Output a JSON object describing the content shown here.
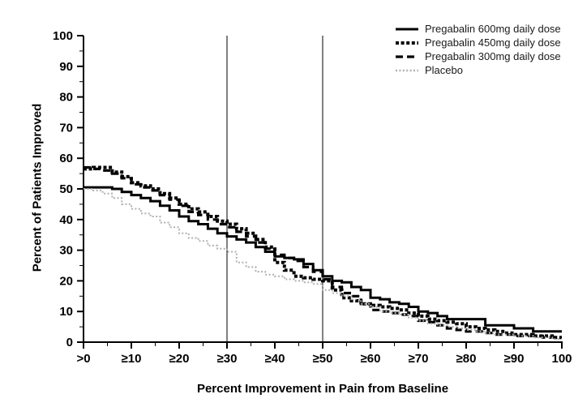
{
  "chart_data": {
    "type": "line",
    "subtype": "step-responder-curves",
    "title": "",
    "xlabel": "Percent Improvement in Pain from Baseline",
    "ylabel": "Percent of Patients Improved",
    "xlim": [
      0,
      100
    ],
    "ylim": [
      0,
      100
    ],
    "x_tick_values": [
      0,
      10,
      20,
      30,
      40,
      50,
      60,
      70,
      80,
      90,
      100
    ],
    "x_tick_labels": [
      ">0",
      "≥10",
      "≥20",
      "≥30",
      "≥40",
      "≥50",
      "≥60",
      "≥70",
      "≥80",
      "≥90",
      "100"
    ],
    "y_tick_values": [
      0,
      10,
      20,
      30,
      40,
      50,
      60,
      70,
      80,
      90,
      100
    ],
    "y_tick_labels": [
      "0",
      "10",
      "20",
      "30",
      "40",
      "50",
      "60",
      "70",
      "80",
      "90",
      "100"
    ],
    "minor_tick_step": 5,
    "grid": false,
    "legend_position": "top-right",
    "reference_lines_x": [
      30,
      50
    ],
    "axis_color": "#000000",
    "x_start": 0,
    "x_step": 2,
    "series": [
      {
        "name": "Pregabalin 600mg daily dose",
        "style": "solid",
        "color": "#000000",
        "width": 3,
        "values": [
          50.5,
          50.5,
          50.5,
          50,
          49,
          48,
          47,
          46,
          44.5,
          43,
          41,
          39.5,
          38.5,
          37,
          35.5,
          34.5,
          33.5,
          32.5,
          31,
          29.5,
          28,
          27.5,
          27,
          25.5,
          23.5,
          21.5,
          20,
          19.5,
          18,
          17,
          14.5,
          14,
          13,
          12.5,
          11.5,
          10,
          9.5,
          8.5,
          7.5,
          7.5,
          7.5,
          7.5,
          5.5,
          5.5,
          5.5,
          4.5,
          4.5,
          3.5,
          3.5,
          3.5,
          3.5
        ]
      },
      {
        "name": "Pregabalin 450mg daily dose",
        "style": "dense-dotted",
        "color": "#000000",
        "width": 4,
        "values": [
          56.5,
          57,
          57,
          55.5,
          54,
          52,
          51,
          50,
          48.5,
          47,
          45,
          43.5,
          42.5,
          41,
          39.5,
          38.5,
          37,
          35.5,
          33.5,
          31,
          26,
          23.5,
          21.5,
          21,
          20.5,
          20,
          17,
          14.5,
          13.5,
          12.5,
          12,
          11.5,
          11,
          10.5,
          9.5,
          8.5,
          7.5,
          7,
          6.5,
          6,
          5,
          4.5,
          4,
          3.5,
          3,
          2.5,
          2.5,
          2,
          2,
          1.5,
          1.5
        ]
      },
      {
        "name": "Pregabalin 300mg daily dose",
        "style": "dashed",
        "color": "#000000",
        "width": 3.2,
        "values": [
          57,
          56.5,
          56,
          55,
          53.5,
          51.5,
          50.5,
          49.5,
          48,
          46.5,
          44.5,
          42.5,
          41.5,
          40,
          38.5,
          37.5,
          36,
          34.5,
          32.5,
          30.5,
          28.5,
          27.5,
          26.5,
          24.5,
          23,
          20.5,
          18,
          16,
          15,
          12.5,
          10.5,
          10,
          9.5,
          9,
          8.5,
          7,
          6.5,
          5.5,
          4.5,
          4,
          3.5,
          3.5,
          3,
          2.5,
          2.5,
          2,
          2,
          2,
          1.5,
          1.5,
          1.5
        ]
      },
      {
        "name": "Placebo",
        "style": "dotted",
        "color": "#b0b0b0",
        "width": 2,
        "values": [
          50,
          49.5,
          48.5,
          47,
          45,
          43.5,
          42,
          41,
          39,
          37.5,
          35.5,
          34,
          33,
          31.5,
          30.5,
          29.5,
          26,
          24.5,
          23,
          22,
          21.5,
          20.5,
          20,
          19.5,
          19,
          17,
          16,
          15,
          14,
          12.5,
          11.5,
          10,
          9.5,
          9,
          8,
          7,
          6,
          5.5,
          5,
          4.5,
          4,
          3.5,
          3,
          2.5,
          2.5,
          2,
          2,
          1.5,
          1.5,
          1,
          1
        ]
      }
    ]
  }
}
